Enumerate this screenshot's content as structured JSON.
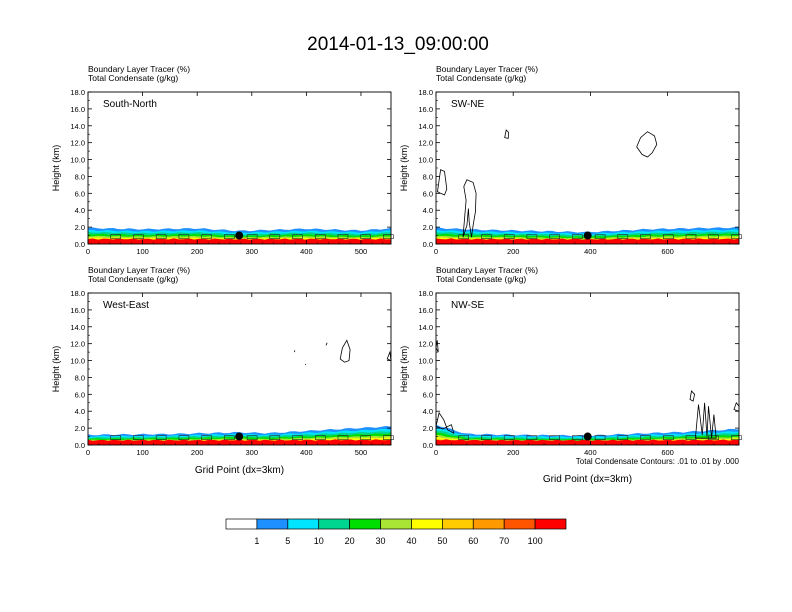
{
  "title": "2014-01-13_09:00:00",
  "colors": {
    "background": "#ffffff",
    "frame": "#000000",
    "fill_levels": [
      "#ffffff",
      "#1e90ff",
      "#00e5ff",
      "#00d68f",
      "#00dd00",
      "#a8e535",
      "#ffff00",
      "#ffcc00",
      "#ff9900",
      "#ff5500",
      "#ff0000"
    ]
  },
  "legend": {
    "ticks": [
      "1",
      "5",
      "10",
      "20",
      "30",
      "40",
      "50",
      "60",
      "70",
      "100"
    ],
    "colors": [
      "#ffffff",
      "#1e90ff",
      "#00e5ff",
      "#00d68f",
      "#00dd00",
      "#a8e535",
      "#ffff00",
      "#ffcc00",
      "#ff9900",
      "#ff5500",
      "#ff0000"
    ]
  },
  "contour_note": "Total Condensate Contours: .01 to .01 by .000",
  "chart_data": [
    {
      "type": "heatmap",
      "panel_label": "South-North",
      "title_lines": [
        "Boundary Layer Tracer   (%)",
        "Total Condensate   (g/kg)"
      ],
      "ylabel": "Height (km)",
      "xlabel": "",
      "xlim": [
        0,
        555
      ],
      "ylim": [
        0,
        18
      ],
      "yticks": [
        "0.0",
        "2.0",
        "4.0",
        "6.0",
        "8.0",
        "10.0",
        "12.0",
        "14.0",
        "16.0",
        "18.0"
      ],
      "xticks": [
        0,
        100,
        200,
        300,
        400,
        500
      ],
      "marker_x": 277,
      "marker_y": 1.0,
      "boundary_top": [
        [
          0,
          1.9
        ],
        [
          100,
          1.75
        ],
        [
          200,
          1.85
        ],
        [
          277,
          1.55
        ],
        [
          400,
          1.8
        ],
        [
          500,
          1.6
        ],
        [
          555,
          1.85
        ]
      ],
      "clouds": []
    },
    {
      "type": "heatmap",
      "panel_label": "SW-NE",
      "title_lines": [
        "Boundary Layer Tracer   (%)",
        "Total Condensate   (g/kg)"
      ],
      "ylabel": "Height (km)",
      "xlabel": "",
      "xlim": [
        0,
        785
      ],
      "ylim": [
        0,
        18
      ],
      "yticks": [
        "0.0",
        "2.0",
        "4.0",
        "6.0",
        "8.0",
        "10.0",
        "12.0",
        "14.0",
        "16.0",
        "18.0"
      ],
      "xticks": [
        0,
        200,
        400,
        600
      ],
      "marker_x": 393,
      "marker_y": 1.0,
      "boundary_top": [
        [
          0,
          1.9
        ],
        [
          100,
          1.7
        ],
        [
          250,
          1.55
        ],
        [
          393,
          1.4
        ],
        [
          550,
          1.75
        ],
        [
          700,
          1.9
        ],
        [
          785,
          1.95
        ]
      ],
      "clouds": [
        [
          [
            4,
            6.2
          ],
          [
            12,
            8.8
          ],
          [
            22,
            8.6
          ],
          [
            28,
            6.5
          ],
          [
            22,
            5.8
          ],
          [
            12,
            6.0
          ]
        ],
        [
          [
            70,
            0.8
          ],
          [
            78,
            5.2
          ],
          [
            72,
            6.8
          ],
          [
            80,
            7.6
          ],
          [
            96,
            7.3
          ],
          [
            104,
            6.0
          ],
          [
            102,
            3.8
          ],
          [
            96,
            2.2
          ],
          [
            92,
            0.8
          ],
          [
            86,
            2.6
          ],
          [
            84,
            4.2
          ],
          [
            80,
            2.2
          ]
        ],
        [
          [
            178,
            12.6
          ],
          [
            182,
            13.5
          ],
          [
            188,
            13.2
          ],
          [
            187,
            12.5
          ]
        ],
        [
          [
            520,
            11.5
          ],
          [
            530,
            12.6
          ],
          [
            548,
            13.3
          ],
          [
            566,
            12.8
          ],
          [
            572,
            11.8
          ],
          [
            560,
            10.8
          ],
          [
            548,
            10.3
          ],
          [
            534,
            10.6
          ]
        ]
      ]
    },
    {
      "type": "heatmap",
      "panel_label": "West-East",
      "title_lines": [
        "Boundary Layer Tracer   (%)",
        "Total Condensate   (g/kg)"
      ],
      "ylabel": "Height (km)",
      "xlabel": "Grid Point (dx=3km)",
      "xlim": [
        0,
        555
      ],
      "ylim": [
        0,
        18
      ],
      "yticks": [
        "0.0",
        "2.0",
        "4.0",
        "6.0",
        "8.0",
        "10.0",
        "12.0",
        "14.0",
        "16.0",
        "18.0"
      ],
      "xticks": [
        0,
        100,
        200,
        300,
        400,
        500
      ],
      "marker_x": 277,
      "marker_y": 1.0,
      "boundary_top": [
        [
          0,
          1.2
        ],
        [
          150,
          1.3
        ],
        [
          277,
          1.5
        ],
        [
          330,
          1.4
        ],
        [
          450,
          1.85
        ],
        [
          555,
          2.2
        ]
      ],
      "clouds": [
        [
          [
            462,
            10.2
          ],
          [
            466,
            11.5
          ],
          [
            474,
            12.4
          ],
          [
            480,
            11.3
          ],
          [
            478,
            10.0
          ],
          [
            470,
            9.8
          ]
        ],
        [
          [
            548,
            10.2
          ],
          [
            553,
            11.0
          ],
          [
            555,
            10.0
          ]
        ],
        [
          [
            436,
            11.8
          ],
          [
            438,
            12.1
          ]
        ],
        [
          [
            378,
            11.0
          ],
          [
            379,
            11.2
          ]
        ],
        [
          [
            398,
            9.5
          ],
          [
            399,
            9.6
          ]
        ]
      ]
    },
    {
      "type": "heatmap",
      "panel_label": "NW-SE",
      "title_lines": [
        "Boundary Layer Tracer   (%)",
        "Total Condensate   (g/kg)"
      ],
      "ylabel": "Height (km)",
      "xlabel": "Grid Point (dx=3km)",
      "xlim": [
        0,
        785
      ],
      "ylim": [
        0,
        18
      ],
      "yticks": [
        "0.0",
        "2.0",
        "4.0",
        "6.0",
        "8.0",
        "10.0",
        "12.0",
        "14.0",
        "16.0",
        "18.0"
      ],
      "xticks": [
        0,
        200,
        400,
        600
      ],
      "marker_x": 393,
      "marker_y": 1.0,
      "boundary_top": [
        [
          0,
          2.4
        ],
        [
          80,
          1.3
        ],
        [
          200,
          1.2
        ],
        [
          393,
          1.1
        ],
        [
          550,
          1.4
        ],
        [
          650,
          1.55
        ],
        [
          785,
          1.9
        ]
      ],
      "clouds": [
        [
          [
            0,
            2.2
          ],
          [
            8,
            3.8
          ],
          [
            20,
            3.0
          ],
          [
            30,
            1.8
          ],
          [
            46,
            1.4
          ],
          [
            40,
            2.4
          ],
          [
            18,
            1.9
          ]
        ],
        [
          [
            0,
            11.5
          ],
          [
            3,
            12.4
          ],
          [
            6,
            11.0
          ]
        ],
        [
          [
            658,
            5.4
          ],
          [
            662,
            6.4
          ],
          [
            670,
            6.0
          ],
          [
            666,
            5.2
          ]
        ],
        [
          [
            672,
            0.8
          ],
          [
            680,
            4.8
          ],
          [
            690,
            1.2
          ],
          [
            696,
            5.0
          ],
          [
            702,
            1.0
          ],
          [
            706,
            4.6
          ],
          [
            714,
            0.8
          ],
          [
            720,
            3.6
          ],
          [
            726,
            0.8
          ]
        ],
        [
          [
            772,
            4.2
          ],
          [
            778,
            5.0
          ],
          [
            785,
            4.6
          ],
          [
            785,
            4.0
          ]
        ]
      ]
    }
  ]
}
